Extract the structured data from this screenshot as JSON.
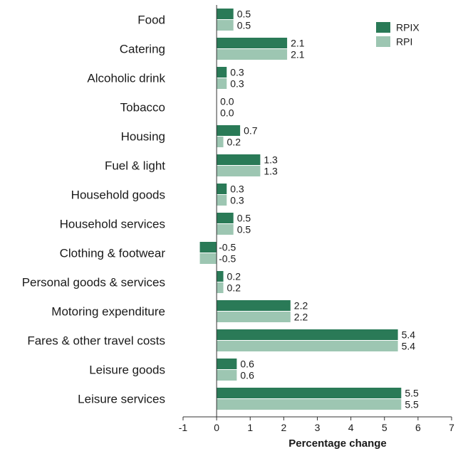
{
  "chart_data": {
    "type": "bar",
    "orientation": "horizontal",
    "title": "",
    "xlabel": "Percentage change",
    "ylabel": "",
    "xlim": [
      -1,
      7
    ],
    "xticks": [
      -1,
      0,
      1,
      2,
      3,
      4,
      5,
      6,
      7
    ],
    "grid": false,
    "legend": "top-right",
    "categories": [
      "Food",
      "Catering",
      "Alcoholic drink",
      "Tobacco",
      "Housing",
      "Fuel & light",
      "Household goods",
      "Household services",
      "Clothing & footwear",
      "Personal goods & services",
      "Motoring expenditure",
      "Fares & other travel costs",
      "Leisure goods",
      "Leisure services"
    ],
    "series": [
      {
        "name": "RPIX",
        "color": "#2a7a57",
        "values": [
          0.5,
          2.1,
          0.3,
          0.0,
          0.7,
          1.3,
          0.3,
          0.5,
          -0.5,
          0.2,
          2.2,
          5.4,
          0.6,
          5.5
        ],
        "labels": [
          "0.5",
          "2.1",
          "0.3",
          "0.0",
          "0.7",
          "1.3",
          "0.3",
          "0.5",
          "-0.5",
          "0.2",
          "2.2",
          "5.4",
          "0.6",
          "5.5"
        ]
      },
      {
        "name": "RPI",
        "color": "#9dc6b2",
        "values": [
          0.5,
          2.1,
          0.3,
          0.0,
          0.2,
          1.3,
          0.3,
          0.5,
          -0.5,
          0.2,
          2.2,
          5.4,
          0.6,
          5.5
        ],
        "labels": [
          "0.5",
          "2.1",
          "0.3",
          "0.0",
          "0.2",
          "1.3",
          "0.3",
          "0.5",
          "-0.5",
          "0.2",
          "2.2",
          "5.4",
          "0.6",
          "5.5"
        ]
      }
    ]
  }
}
